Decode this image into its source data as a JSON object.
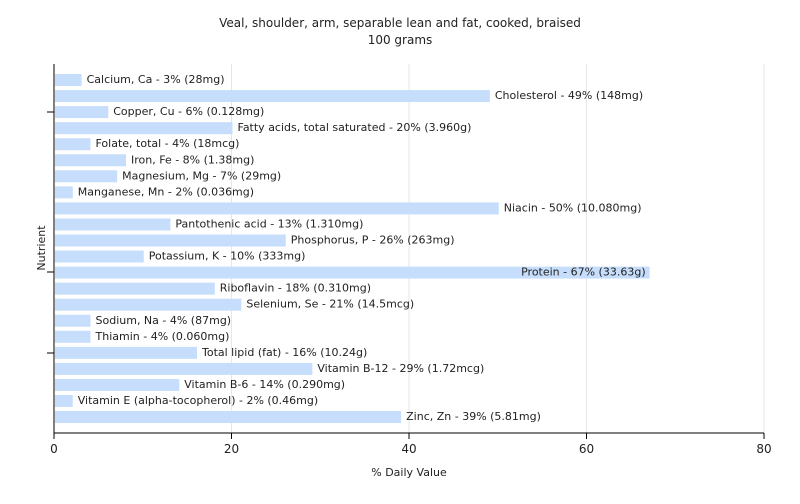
{
  "chart_data": {
    "type": "bar",
    "orientation": "horizontal",
    "title": "Veal, shoulder, arm, separable lean and fat, cooked, braised",
    "subtitle": "100 grams",
    "xlabel": "% Daily Value",
    "ylabel": "Nutrient",
    "xlim": [
      0,
      80
    ],
    "xticks": [
      "0",
      "20",
      "40",
      "60",
      "80"
    ],
    "grid": true,
    "legend": "none",
    "bar_color": "#c6defc",
    "categories": [
      "Calcium, Ca",
      "Cholesterol",
      "Copper, Cu",
      "Fatty acids, total saturated",
      "Folate, total",
      "Iron, Fe",
      "Magnesium, Mg",
      "Manganese, Mn",
      "Niacin",
      "Pantothenic acid",
      "Phosphorus, P",
      "Potassium, K",
      "Protein",
      "Riboflavin",
      "Selenium, Se",
      "Sodium, Na",
      "Thiamin",
      "Total lipid (fat)",
      "Vitamin B-12",
      "Vitamin B-6",
      "Vitamin E (alpha-tocopherol)",
      "Zinc, Zn"
    ],
    "values": [
      3,
      49,
      6,
      20,
      4,
      8,
      7,
      2,
      50,
      13,
      26,
      10,
      67,
      18,
      21,
      4,
      4,
      16,
      29,
      14,
      2,
      39
    ],
    "labels": [
      "Calcium, Ca - 3% (28mg)",
      "Cholesterol - 49% (148mg)",
      "Copper, Cu - 6% (0.128mg)",
      "Fatty acids, total saturated - 20% (3.960g)",
      "Folate, total - 4% (18mcg)",
      "Iron, Fe - 8% (1.38mg)",
      "Magnesium, Mg - 7% (29mg)",
      "Manganese, Mn - 2% (0.036mg)",
      "Niacin - 50% (10.080mg)",
      "Pantothenic acid - 13% (1.310mg)",
      "Phosphorus, P - 26% (263mg)",
      "Potassium, K - 10% (333mg)",
      "Protein - 67% (33.63g)",
      "Riboflavin - 18% (0.310mg)",
      "Selenium, Se - 21% (14.5mcg)",
      "Sodium, Na - 4% (87mg)",
      "Thiamin - 4% (0.060mg)",
      "Total lipid (fat) - 16% (10.24g)",
      "Vitamin B-12 - 29% (1.72mcg)",
      "Vitamin B-6 - 14% (0.290mg)",
      "Vitamin E (alpha-tocopherol) - 2% (0.46mg)",
      "Zinc, Zn - 39% (5.81mg)"
    ]
  }
}
